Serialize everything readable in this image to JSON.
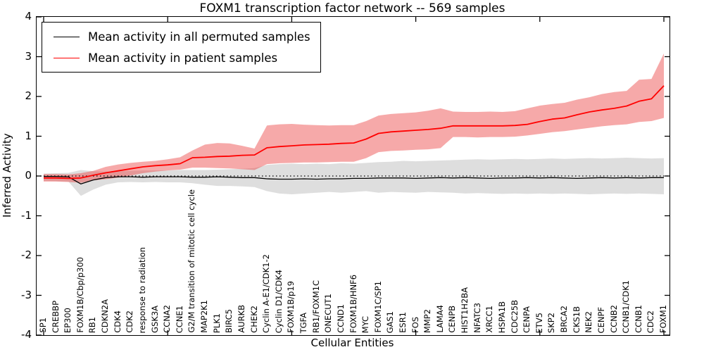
{
  "title": "FOXM1 transcription factor network -- 569 samples",
  "legend": {
    "position": "upper left",
    "items": [
      {
        "label": "Mean activity in all permuted samples",
        "color": "#000000"
      },
      {
        "label": "Mean activity in patient samples",
        "color": "#ff0000"
      }
    ]
  },
  "chart_data": {
    "type": "line",
    "title": "FOXM1 transcription factor network -- 569 samples",
    "xlabel": "Cellular Entities",
    "ylabel": "Inferred Activity",
    "ylim": [
      -4,
      4
    ],
    "yticks": [
      4,
      3,
      2,
      1,
      0,
      -1,
      -2,
      -3,
      -4
    ],
    "x_major_tick_indices": [
      0,
      10,
      20,
      30,
      40,
      50
    ],
    "grid": false,
    "zero_line_y": 0,
    "categories": [
      "SP1",
      "CREBBP",
      "EP300",
      "FOXM1B/Cbp/p300",
      "RB1",
      "CDKN2A",
      "CDK4",
      "CDK2",
      "response to radiation",
      "GSK3A",
      "CCNA2",
      "CCNE1",
      "G2/M transition of mitotic cell cycle",
      "MAP2K1",
      "PLK1",
      "BIRC5",
      "AURKB",
      "CHEK2",
      "Cyclin A-E1/CDK1-2",
      "Cyclin D1/CDK4",
      "FOXM1B/p19",
      "TGFA",
      "RB1/FOXM1C",
      "ONECUT1",
      "CCND1",
      "FOXM1B/HNF6",
      "MYC",
      "FOXM1C/SP1",
      "GAS1",
      "ESR1",
      "FOS",
      "MMP2",
      "LAMA4",
      "CENPB",
      "HIST1H2BA",
      "NFATC3",
      "XRCC1",
      "HSPA1B",
      "CDC25B",
      "CENPA",
      "ETV5",
      "SKP2",
      "BRCA2",
      "CKS1B",
      "NEK2",
      "CENPF",
      "CCNB2",
      "CCNB1/CDK1",
      "CCNB1",
      "CDC2",
      "FOXM1"
    ],
    "series": [
      {
        "name": "Mean activity in all permuted samples",
        "color": "#000000",
        "line_width": 1.3,
        "band_color": "rgba(160,160,160,0.35)",
        "values": [
          -0.01,
          -0.01,
          -0.02,
          -0.2,
          -0.1,
          -0.04,
          -0.02,
          -0.02,
          -0.03,
          -0.02,
          -0.02,
          -0.02,
          -0.03,
          -0.03,
          -0.02,
          -0.03,
          -0.04,
          -0.04,
          -0.07,
          -0.08,
          -0.08,
          -0.07,
          -0.08,
          -0.07,
          -0.07,
          -0.06,
          -0.06,
          -0.05,
          -0.05,
          -0.05,
          -0.06,
          -0.05,
          -0.04,
          -0.05,
          -0.04,
          -0.05,
          -0.06,
          -0.05,
          -0.05,
          -0.04,
          -0.05,
          -0.04,
          -0.05,
          -0.06,
          -0.05,
          -0.04,
          -0.05,
          -0.04,
          -0.05,
          -0.04,
          -0.04
        ],
        "band_lower": [
          -0.12,
          -0.13,
          -0.14,
          -0.5,
          -0.34,
          -0.22,
          -0.16,
          -0.15,
          -0.16,
          -0.15,
          -0.16,
          -0.16,
          -0.18,
          -0.22,
          -0.25,
          -0.25,
          -0.26,
          -0.28,
          -0.38,
          -0.44,
          -0.46,
          -0.44,
          -0.42,
          -0.4,
          -0.42,
          -0.4,
          -0.38,
          -0.42,
          -0.4,
          -0.41,
          -0.42,
          -0.4,
          -0.41,
          -0.42,
          -0.44,
          -0.43,
          -0.44,
          -0.45,
          -0.44,
          -0.45,
          -0.44,
          -0.45,
          -0.44,
          -0.45,
          -0.46,
          -0.45,
          -0.44,
          -0.45,
          -0.44,
          -0.45,
          -0.46
        ],
        "band_upper": [
          0.06,
          0.07,
          0.08,
          0.15,
          0.12,
          0.11,
          0.12,
          0.13,
          0.14,
          0.14,
          0.14,
          0.15,
          0.15,
          0.15,
          0.16,
          0.17,
          0.18,
          0.2,
          0.28,
          0.3,
          0.31,
          0.3,
          0.31,
          0.3,
          0.32,
          0.31,
          0.33,
          0.35,
          0.36,
          0.38,
          0.37,
          0.38,
          0.39,
          0.4,
          0.41,
          0.42,
          0.41,
          0.42,
          0.43,
          0.42,
          0.43,
          0.44,
          0.43,
          0.44,
          0.45,
          0.44,
          0.45,
          0.46,
          0.45,
          0.44,
          0.45
        ]
      },
      {
        "name": "Mean activity in patient samples",
        "color": "#ff0000",
        "line_width": 1.8,
        "band_color": "rgba(235,65,65,0.45)",
        "values": [
          -0.05,
          -0.05,
          -0.06,
          -0.05,
          0.02,
          0.08,
          0.13,
          0.18,
          0.23,
          0.26,
          0.28,
          0.31,
          0.46,
          0.47,
          0.49,
          0.5,
          0.52,
          0.53,
          0.71,
          0.74,
          0.76,
          0.78,
          0.79,
          0.8,
          0.82,
          0.83,
          0.93,
          1.07,
          1.11,
          1.13,
          1.15,
          1.17,
          1.2,
          1.26,
          1.26,
          1.26,
          1.26,
          1.26,
          1.27,
          1.3,
          1.37,
          1.43,
          1.46,
          1.54,
          1.61,
          1.66,
          1.7,
          1.76,
          1.88,
          1.94,
          2.27
        ],
        "band_lower": [
          -0.14,
          -0.14,
          -0.15,
          -0.17,
          -0.11,
          -0.08,
          -0.04,
          0.01,
          0.07,
          0.11,
          0.14,
          0.16,
          0.21,
          0.21,
          0.2,
          0.19,
          0.17,
          0.15,
          0.3,
          0.32,
          0.33,
          0.34,
          0.34,
          0.35,
          0.36,
          0.36,
          0.45,
          0.6,
          0.63,
          0.64,
          0.66,
          0.67,
          0.7,
          0.98,
          0.98,
          0.97,
          0.98,
          0.98,
          0.99,
          1.02,
          1.06,
          1.1,
          1.13,
          1.17,
          1.21,
          1.25,
          1.28,
          1.3,
          1.36,
          1.38,
          1.46
        ],
        "band_upper": [
          0.05,
          0.05,
          0.04,
          0.07,
          0.13,
          0.23,
          0.29,
          0.33,
          0.36,
          0.38,
          0.42,
          0.47,
          0.64,
          0.79,
          0.83,
          0.82,
          0.76,
          0.69,
          1.27,
          1.3,
          1.31,
          1.29,
          1.28,
          1.27,
          1.28,
          1.28,
          1.38,
          1.52,
          1.56,
          1.58,
          1.6,
          1.64,
          1.7,
          1.62,
          1.61,
          1.61,
          1.62,
          1.61,
          1.63,
          1.7,
          1.77,
          1.81,
          1.84,
          1.92,
          1.98,
          2.06,
          2.11,
          2.14,
          2.42,
          2.44,
          3.08
        ]
      }
    ]
  }
}
